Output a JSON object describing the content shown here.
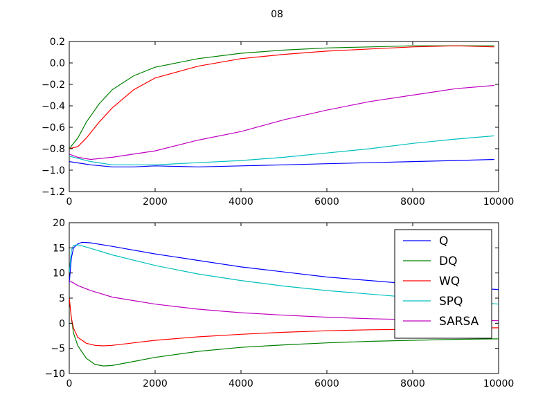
{
  "figure": {
    "title": "08"
  },
  "chart_data": [
    {
      "type": "line",
      "title": "",
      "xlabel": "",
      "ylabel": "",
      "xlim": [
        0,
        10000
      ],
      "ylim": [
        -1.2,
        0.2
      ],
      "xticks": [
        0,
        2000,
        4000,
        6000,
        8000,
        10000
      ],
      "yticks": [
        -1.2,
        -1.0,
        -0.8,
        -0.6,
        -0.4,
        -0.2,
        0.0,
        0.2
      ],
      "xtick_labels": [
        "0",
        "2000",
        "4000",
        "6000",
        "8000",
        "10000"
      ],
      "ytick_labels": [
        "−1.2",
        "−1.0",
        "−0.8",
        "−0.6",
        "−0.4",
        "−0.2",
        "0.0",
        "0.2"
      ],
      "grid": false,
      "legend": null,
      "series": [
        {
          "color": "#0000ff",
          "x": [
            0,
            500,
            1000,
            1500,
            2000,
            3000,
            4000,
            5000,
            6000,
            7000,
            8000,
            9000,
            9900
          ],
          "y": [
            -0.92,
            -0.95,
            -0.97,
            -0.97,
            -0.96,
            -0.97,
            -0.96,
            -0.95,
            -0.94,
            -0.93,
            -0.92,
            -0.91,
            -0.9
          ]
        },
        {
          "color": "#008000",
          "x": [
            0,
            200,
            400,
            700,
            1000,
            1500,
            2000,
            3000,
            4000,
            5000,
            6000,
            7000,
            8000,
            9000,
            9900
          ],
          "y": [
            -0.8,
            -0.7,
            -0.55,
            -0.38,
            -0.25,
            -0.12,
            -0.04,
            0.04,
            0.09,
            0.12,
            0.14,
            0.15,
            0.16,
            0.16,
            0.16
          ]
        },
        {
          "color": "#ff0000",
          "x": [
            0,
            200,
            400,
            700,
            1000,
            1500,
            2000,
            3000,
            4000,
            5000,
            6000,
            7000,
            8000,
            9000,
            9900
          ],
          "y": [
            -0.8,
            -0.78,
            -0.7,
            -0.55,
            -0.42,
            -0.25,
            -0.14,
            -0.03,
            0.04,
            0.08,
            0.11,
            0.13,
            0.15,
            0.16,
            0.15
          ]
        },
        {
          "color": "#00bfbf",
          "x": [
            0,
            500,
            1000,
            2000,
            3000,
            4000,
            5000,
            6000,
            7000,
            8000,
            9000,
            9900
          ],
          "y": [
            -0.87,
            -0.92,
            -0.95,
            -0.95,
            -0.93,
            -0.91,
            -0.88,
            -0.84,
            -0.8,
            -0.75,
            -0.71,
            -0.68
          ]
        },
        {
          "color": "#bf00bf",
          "x": [
            0,
            200,
            500,
            1000,
            2000,
            3000,
            4000,
            5000,
            6000,
            7000,
            8000,
            9000,
            9900
          ],
          "y": [
            -0.85,
            -0.88,
            -0.9,
            -0.88,
            -0.82,
            -0.72,
            -0.64,
            -0.53,
            -0.44,
            -0.36,
            -0.3,
            -0.24,
            -0.21
          ]
        }
      ]
    },
    {
      "type": "line",
      "title": "",
      "xlabel": "",
      "ylabel": "",
      "xlim": [
        0,
        10000
      ],
      "ylim": [
        -10,
        20
      ],
      "xticks": [
        0,
        2000,
        4000,
        6000,
        8000,
        10000
      ],
      "yticks": [
        -10,
        -5,
        0,
        5,
        10,
        15,
        20
      ],
      "xtick_labels": [
        "0",
        "2000",
        "4000",
        "6000",
        "8000",
        "10000"
      ],
      "ytick_labels": [
        "−10",
        "−5",
        "0",
        "5",
        "10",
        "15",
        "20"
      ],
      "grid": false,
      "legend": "upper right",
      "series": [
        {
          "name": "Q",
          "color": "#0000ff",
          "x": [
            0,
            50,
            100,
            200,
            300,
            500,
            1000,
            2000,
            3000,
            4000,
            5000,
            6000,
            7000,
            8000,
            9000,
            10000
          ],
          "y": [
            8,
            13,
            15,
            15.8,
            16.1,
            16.0,
            15.3,
            13.8,
            12.5,
            11.2,
            10.2,
            9.2,
            8.5,
            7.8,
            7.2,
            6.7
          ]
        },
        {
          "name": "DQ",
          "color": "#008000",
          "x": [
            0,
            50,
            100,
            200,
            400,
            600,
            800,
            1000,
            1500,
            2000,
            3000,
            4000,
            5000,
            6000,
            7000,
            8000,
            9000,
            10000
          ],
          "y": [
            5,
            1,
            -2,
            -4.5,
            -7,
            -8.2,
            -8.5,
            -8.4,
            -7.6,
            -6.8,
            -5.6,
            -4.8,
            -4.3,
            -3.9,
            -3.6,
            -3.4,
            -3.2,
            -3.1
          ]
        },
        {
          "name": "WQ",
          "color": "#ff0000",
          "x": [
            0,
            50,
            100,
            200,
            400,
            600,
            800,
            1000,
            1500,
            2000,
            3000,
            4000,
            5000,
            6000,
            7000,
            8000,
            9000,
            10000
          ],
          "y": [
            5,
            1,
            -1,
            -2.8,
            -4,
            -4.4,
            -4.5,
            -4.4,
            -3.9,
            -3.4,
            -2.7,
            -2.2,
            -1.8,
            -1.5,
            -1.3,
            -1.2,
            -1.0,
            -0.9
          ]
        },
        {
          "name": "SPQ",
          "color": "#00bfbf",
          "x": [
            0,
            50,
            100,
            200,
            300,
            500,
            1000,
            2000,
            3000,
            4000,
            5000,
            6000,
            7000,
            8000,
            9000,
            10000
          ],
          "y": [
            10,
            14.5,
            15.5,
            15.6,
            15.4,
            14.9,
            13.6,
            11.5,
            9.8,
            8.5,
            7.4,
            6.5,
            5.8,
            5.1,
            4.5,
            3.8
          ]
        },
        {
          "name": "SARSA",
          "color": "#bf00bf",
          "x": [
            0,
            50,
            100,
            200,
            500,
            1000,
            1500,
            2000,
            3000,
            4000,
            5000,
            6000,
            7000,
            8000,
            9000,
            10000
          ],
          "y": [
            8.5,
            8.2,
            8.0,
            7.5,
            6.5,
            5.2,
            4.5,
            3.8,
            2.8,
            2.1,
            1.6,
            1.2,
            0.9,
            0.7,
            0.6,
            0.5
          ]
        }
      ]
    }
  ]
}
